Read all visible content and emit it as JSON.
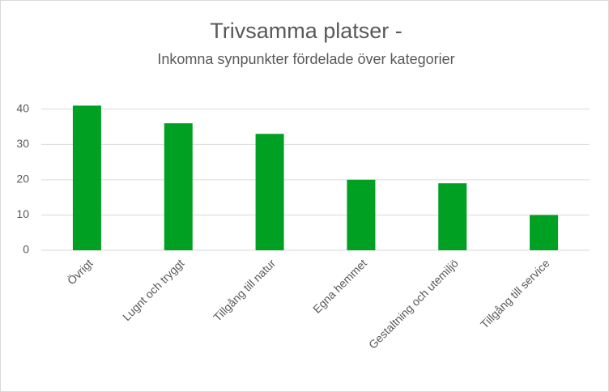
{
  "chart_data": {
    "type": "bar",
    "title": "Trivsamma platser -",
    "subtitle": "Inkomna synpunkter fördelade över kategorier",
    "categories": [
      "Övrigt",
      "Lugnt och tryggt",
      "Tillgång till natur",
      "Egna hemmet",
      "Gestaltning och utemiljö",
      "Tillgång till service"
    ],
    "values": [
      41,
      36,
      33,
      20,
      19,
      10
    ],
    "color": "#00a023",
    "ylim": [
      0,
      45
    ],
    "yticks": [
      0,
      10,
      20,
      30,
      40
    ],
    "grid": true
  }
}
